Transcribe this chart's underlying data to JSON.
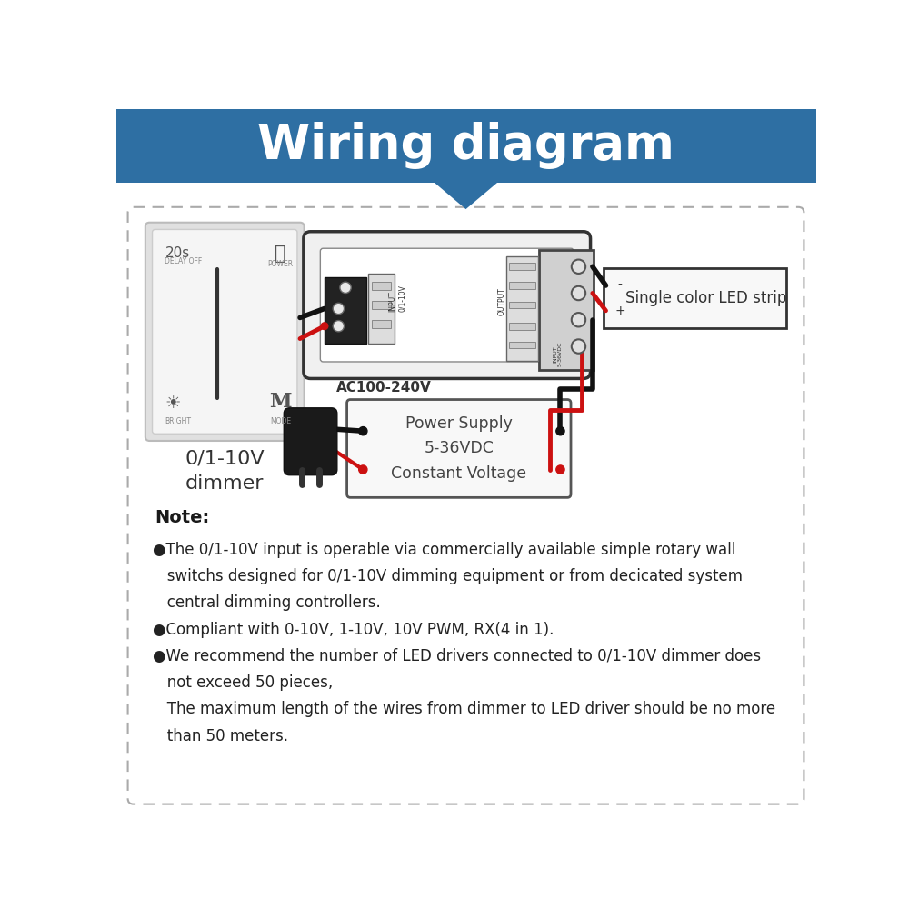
{
  "title": "Wiring diagram",
  "title_bg_color": "#2e6fa3",
  "title_text_color": "#ffffff",
  "bg_color": "#ffffff",
  "outer_bg": "#ffffff",
  "note_title": "Note:",
  "note_lines": [
    "●The 0/1-10V input is operable via commercially available simple rotary wall",
    "   switchs designed for 0/1-10V dimming equipment or from decicated system",
    "   central dimming controllers.",
    "●Compliant with 0-10V, 1-10V, 10V PWM, RX(4 in 1).",
    "●We recommend the number of LED drivers connected to 0/1-10V dimmer does",
    "   not exceed 50 pieces,",
    "   The maximum length of the wires from dimmer to LED driver should be no more",
    "   than 50 meters."
  ],
  "dimmer_label": "0/1-10V\ndimmer",
  "led_strip_label": "Single color LED strip",
  "power_supply_label": "Power Supply\n5-36VDC\nConstant Voltage",
  "ac_label": "AC100-240V"
}
